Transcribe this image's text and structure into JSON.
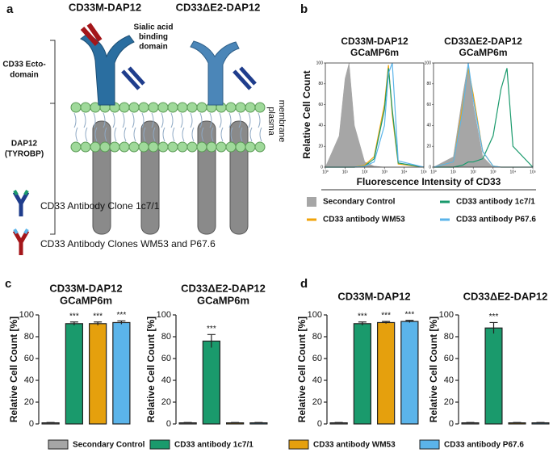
{
  "panel_labels": [
    "a",
    "b",
    "c",
    "d"
  ],
  "diagram": {
    "headers": [
      "CD33M-DAP12",
      "CD33ΔE2-DAP12"
    ],
    "sialic": [
      "Sialic acid",
      "binding",
      "domain"
    ],
    "ecto": [
      "CD33 Ecto-",
      "domain"
    ],
    "dap12": [
      "DAP12",
      "(TYROBP)"
    ],
    "membrane": [
      "plasma",
      "membrane"
    ],
    "antibody_1": "CD33 Antibody Clone 1c7/1",
    "antibody_2": "CD33 Antibody Clones WM53 and P67.6"
  },
  "legend_b": [
    {
      "name": "Secondary Control",
      "color": "#a6a6a6"
    },
    {
      "name": "CD33 antibody 1c7/1",
      "color": "#1a9a6c"
    },
    {
      "name": "CD33 antibody WM53",
      "color": "#f0a30a"
    },
    {
      "name": "CD33 antibody P67.6",
      "color": "#5bb4ea"
    }
  ],
  "legend_cd": [
    {
      "name": "Secondary Control",
      "color": "#a6a6a6"
    },
    {
      "name": "CD33 antibody 1c7/1",
      "color": "#1a9a6c"
    },
    {
      "name": "CD33 antibody WM53",
      "color": "#e5a00d"
    },
    {
      "name": "CD33 antibody P67.6",
      "color": "#5bb4ea"
    }
  ],
  "chart_data": [
    {
      "type": "line",
      "title": "CD33M-DAP12",
      "subtitle": "GCaMP6m",
      "ylabel": "Relative Cell Count",
      "xlabel": "Fluorescence Intensity of CD33",
      "xscale": "log",
      "x": [
        1,
        5,
        10,
        16,
        30,
        100,
        300,
        1000,
        1600,
        2500,
        5000,
        100000
      ],
      "xlim": [
        1,
        100000
      ],
      "xticks": [
        {
          "value": 1,
          "label": "10⁰"
        },
        {
          "value": 10,
          "label": "10¹"
        },
        {
          "value": 100,
          "label": "10²"
        },
        {
          "value": 1000,
          "label": "10³"
        },
        {
          "value": 10000,
          "label": "10⁴"
        },
        {
          "value": 100000,
          "label": "10⁵"
        }
      ],
      "ylim": [
        0,
        100
      ],
      "yticks": [
        0,
        20,
        40,
        60,
        80,
        100
      ],
      "series": [
        {
          "color": "#a6a6a6",
          "filled": true,
          "values": [
            0,
            30,
            85,
            100,
            40,
            5,
            1,
            0,
            0,
            0,
            0,
            0
          ]
        },
        {
          "color": "#f0a30a",
          "values": [
            0,
            0,
            0,
            0,
            0,
            2,
            10,
            60,
            98,
            50,
            3,
            0
          ]
        },
        {
          "color": "#1a9a6c",
          "values": [
            0,
            0,
            0,
            0,
            0,
            1,
            8,
            55,
            95,
            55,
            4,
            0
          ]
        },
        {
          "color": "#5bb4ea",
          "values": [
            0,
            0,
            0,
            0,
            0,
            1,
            5,
            40,
            90,
            100,
            6,
            0
          ]
        }
      ]
    },
    {
      "type": "line",
      "title": "CD33ΔE2-DAP12",
      "subtitle": "GCaMP6m",
      "xscale": "log",
      "x": [
        1,
        10,
        30,
        56,
        100,
        300,
        1000,
        2500,
        5000,
        10000,
        100000
      ],
      "xlim": [
        1,
        100000
      ],
      "xticks": [
        {
          "value": 1,
          "label": "10⁰"
        },
        {
          "value": 10,
          "label": "10¹"
        },
        {
          "value": 100,
          "label": "10²"
        },
        {
          "value": 1000,
          "label": "10³"
        },
        {
          "value": 10000,
          "label": "10⁴"
        },
        {
          "value": 100000,
          "label": "10⁵"
        }
      ],
      "ylim": [
        0,
        100
      ],
      "yticks": [
        0,
        20,
        40,
        60,
        80,
        100
      ],
      "series": [
        {
          "color": "#a6a6a6",
          "filled": true,
          "values": [
            0,
            10,
            70,
            100,
            60,
            10,
            0,
            0,
            0,
            0,
            0
          ]
        },
        {
          "color": "#f0a30a",
          "values": [
            0,
            5,
            60,
            95,
            70,
            15,
            1,
            0,
            0,
            0,
            0
          ]
        },
        {
          "color": "#1a9a6c",
          "values": [
            0,
            0,
            2,
            5,
            5,
            8,
            30,
            75,
            95,
            20,
            0
          ]
        },
        {
          "color": "#5bb4ea",
          "values": [
            0,
            5,
            55,
            100,
            65,
            15,
            1,
            0,
            0,
            0,
            0
          ]
        }
      ]
    },
    {
      "type": "bar",
      "title": "CD33M-DAP12",
      "subtitle": "GCaMP6m",
      "ylabel": "Relative Cell Count [%]",
      "values": [
        1,
        92,
        92,
        93
      ],
      "errors": [
        0.3,
        1.5,
        1.5,
        1.5
      ],
      "significance": [
        null,
        "***",
        "***",
        "***"
      ],
      "colors": [
        "#a6a6a6",
        "#1a9a6c",
        "#e5a00d",
        "#5bb4ea"
      ],
      "ylim": [
        0,
        100
      ],
      "yticks": [
        0,
        20,
        40,
        60,
        80,
        100
      ]
    },
    {
      "type": "bar",
      "title": "CD33ΔE2-DAP12",
      "subtitle": "GCaMP6m",
      "ylabel": "Relative Cell Count [%]",
      "values": [
        1,
        76,
        1,
        1
      ],
      "errors": [
        0.3,
        6,
        0.3,
        0.3
      ],
      "significance": [
        null,
        "***",
        null,
        null
      ],
      "colors": [
        "#a6a6a6",
        "#1a9a6c",
        "#e5a00d",
        "#5bb4ea"
      ],
      "ylim": [
        0,
        100
      ],
      "yticks": [
        0,
        20,
        40,
        60,
        80,
        100
      ]
    },
    {
      "type": "bar",
      "title": "CD33M-DAP12",
      "ylabel": "Relative Cell Count [%]",
      "values": [
        1,
        92,
        93,
        94
      ],
      "errors": [
        0.3,
        1.5,
        1,
        1
      ],
      "significance": [
        null,
        "***",
        "***",
        "***"
      ],
      "colors": [
        "#a6a6a6",
        "#1a9a6c",
        "#e5a00d",
        "#5bb4ea"
      ],
      "ylim": [
        0,
        100
      ],
      "yticks": [
        0,
        20,
        40,
        60,
        80,
        100
      ]
    },
    {
      "type": "bar",
      "title": "CD33ΔE2-DAP12",
      "ylabel": "Relative Cell Count [%]",
      "values": [
        1,
        88,
        1,
        1
      ],
      "errors": [
        0.3,
        5,
        0.3,
        0.3
      ],
      "significance": [
        null,
        "***",
        null,
        null
      ],
      "colors": [
        "#a6a6a6",
        "#1a9a6c",
        "#e5a00d",
        "#5bb4ea"
      ],
      "ylim": [
        0,
        100
      ],
      "yticks": [
        0,
        20,
        40,
        60,
        80,
        100
      ]
    }
  ]
}
